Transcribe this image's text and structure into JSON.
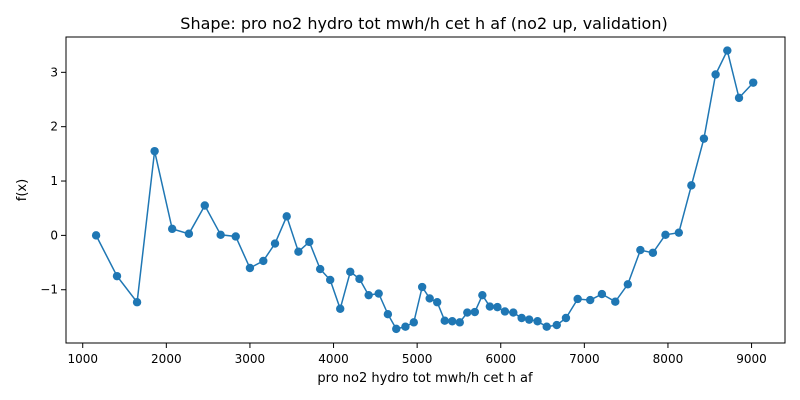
{
  "chart_data": {
    "type": "line",
    "title": "Shape: pro no2 hydro tot mwh/h cet h af (no2 up, validation)",
    "xlabel": "pro no2 hydro tot mwh/h cet h af",
    "ylabel": "f(x)",
    "xlim": [
      800,
      9400
    ],
    "ylim": [
      -1.98,
      3.65
    ],
    "xticks": [
      1000,
      2000,
      3000,
      4000,
      5000,
      6000,
      7000,
      8000,
      9000
    ],
    "xtick_labels": [
      "1000",
      "2000",
      "3000",
      "4000",
      "5000",
      "6000",
      "7000",
      "8000",
      "9000"
    ],
    "yticks": [
      -1,
      0,
      1,
      2,
      3
    ],
    "ytick_labels": [
      "−1",
      "0",
      "1",
      "2",
      "3"
    ],
    "grid": false,
    "color": "#1f77b4",
    "series": [
      {
        "x": [
          1160,
          1410,
          1650,
          1860,
          2070,
          2270,
          2460,
          2650,
          2830,
          3000,
          3160,
          3300,
          3440,
          3580,
          3710,
          3840,
          3960,
          4080,
          4200,
          4310,
          4420,
          4540,
          4650,
          4750,
          4860,
          4960,
          5060,
          5150,
          5240,
          5330,
          5420,
          5510,
          5600,
          5690,
          5780,
          5870,
          5960,
          6050,
          6150,
          6250,
          6340,
          6440,
          6550,
          6670,
          6780,
          6920,
          7070,
          7210,
          7370,
          7520,
          7670,
          7820,
          7970,
          8130,
          8280,
          8430,
          8570,
          8710,
          8850,
          9020
        ],
        "y": [
          0.0,
          -0.75,
          -1.23,
          1.55,
          0.12,
          0.03,
          0.55,
          0.01,
          -0.02,
          -0.6,
          -0.47,
          -0.15,
          0.35,
          -0.3,
          -0.12,
          -0.62,
          -0.82,
          -1.35,
          -0.67,
          -0.8,
          -1.1,
          -1.07,
          -1.45,
          -1.72,
          -1.68,
          -1.6,
          -0.95,
          -1.16,
          -1.23,
          -1.57,
          -1.58,
          -1.6,
          -1.42,
          -1.41,
          -1.1,
          -1.31,
          -1.32,
          -1.4,
          -1.42,
          -1.52,
          -1.55,
          -1.58,
          -1.68,
          -1.65,
          -1.52,
          -1.17,
          -1.19,
          -1.08,
          -1.22,
          -0.9,
          -0.27,
          -0.32,
          0.01,
          0.05,
          0.92,
          1.78,
          2.96,
          3.4,
          2.53,
          2.81
        ]
      }
    ]
  }
}
